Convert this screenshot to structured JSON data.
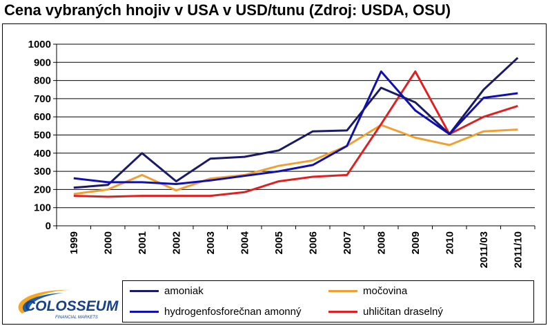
{
  "title": "Cena vybraných hnojiv v USA v USD/tunu (Zdroj: USDA, OSU)",
  "logo": {
    "name": "COLOSSEUM",
    "tagline": "FINANCIAL MARKETS"
  },
  "chart_data": {
    "type": "line",
    "title": "Cena vybraných hnojiv v USA v USD/tunu (Zdroj: USDA, OSU)",
    "categories": [
      "1999",
      "2000",
      "2001",
      "2002",
      "2003",
      "2004",
      "2005",
      "2006",
      "2007",
      "2008",
      "2009",
      "2010",
      "2011/03",
      "2011/10"
    ],
    "ylim": [
      0,
      1000
    ],
    "yticks": [
      0,
      100,
      200,
      300,
      400,
      500,
      600,
      700,
      800,
      900,
      1000
    ],
    "grid": true,
    "legend_position": "bottom",
    "series": [
      {
        "name": "amoniak",
        "color": "#1a1a66",
        "values": [
          210,
          225,
          400,
          245,
          370,
          380,
          415,
          520,
          525,
          760,
          680,
          505,
          750,
          925
        ]
      },
      {
        "name": "močovina",
        "color": "#f0a030",
        "values": [
          175,
          200,
          280,
          195,
          260,
          280,
          330,
          360,
          440,
          555,
          485,
          445,
          520,
          530
        ]
      },
      {
        "name": "hydrogenfosforečnan amonný",
        "color": "#1010b0",
        "values": [
          262,
          240,
          240,
          230,
          250,
          275,
          300,
          335,
          440,
          850,
          635,
          505,
          705,
          730
        ]
      },
      {
        "name": "uhličitan draselný",
        "color": "#e02020",
        "values": [
          165,
          160,
          165,
          165,
          165,
          185,
          245,
          270,
          280,
          560,
          850,
          505,
          600,
          660
        ]
      }
    ]
  }
}
